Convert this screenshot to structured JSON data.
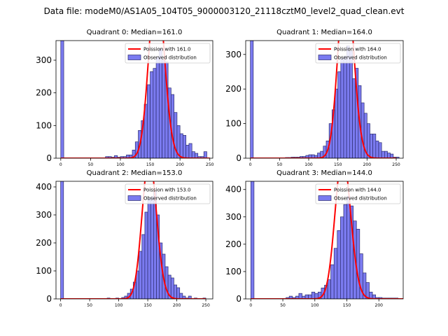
{
  "chart_data": {
    "suptitle": "Data file: modeM0/AS1A05_104T05_9000003120_21118cztM0_level2_quad_clean.evt",
    "bin_width": 5,
    "panels": [
      {
        "title": "Quadrant 0: Median=161.0",
        "type": "histogram",
        "xlim": [
          -8,
          255
        ],
        "ylim": [
          0,
          360
        ],
        "xticks": [
          0,
          50,
          100,
          150,
          200,
          250
        ],
        "yticks": [
          0,
          100,
          200,
          300
        ],
        "legend": {
          "poisson": "Poission with 161.0",
          "observed": "Observed distribution",
          "position": "upper-right"
        },
        "poisson_mean": 161,
        "counts": [
          [
            0,
            360
          ],
          [
            75,
            5
          ],
          [
            80,
            5
          ],
          [
            85,
            3
          ],
          [
            90,
            8
          ],
          [
            95,
            3
          ],
          [
            100,
            5
          ],
          [
            105,
            5
          ],
          [
            110,
            10
          ],
          [
            115,
            10
          ],
          [
            120,
            25
          ],
          [
            125,
            50
          ],
          [
            130,
            85
          ],
          [
            135,
            115
          ],
          [
            140,
            165
          ],
          [
            145,
            225
          ],
          [
            150,
            265
          ],
          [
            155,
            275
          ],
          [
            160,
            310
          ],
          [
            165,
            335
          ],
          [
            170,
            300
          ],
          [
            175,
            295
          ],
          [
            180,
            215
          ],
          [
            185,
            195
          ],
          [
            190,
            140
          ],
          [
            195,
            100
          ],
          [
            200,
            75
          ],
          [
            205,
            70
          ],
          [
            210,
            40
          ],
          [
            215,
            45
          ],
          [
            220,
            20
          ],
          [
            225,
            15
          ],
          [
            230,
            5
          ],
          [
            235,
            5
          ],
          [
            240,
            20
          ]
        ]
      },
      {
        "title": "Quadrant 1: Median=164.0",
        "type": "histogram",
        "xlim": [
          -8,
          262
        ],
        "ylim": [
          0,
          340
        ],
        "xticks": [
          0,
          50,
          100,
          150,
          200,
          250
        ],
        "yticks": [
          0,
          100,
          200,
          300
        ],
        "legend": {
          "poisson": "Poission with 164.0",
          "observed": "Observed distribution",
          "position": "upper-right"
        },
        "poisson_mean": 164,
        "counts": [
          [
            0,
            340
          ],
          [
            60,
            2
          ],
          [
            65,
            2
          ],
          [
            70,
            3
          ],
          [
            75,
            3
          ],
          [
            80,
            3
          ],
          [
            85,
            5
          ],
          [
            90,
            5
          ],
          [
            95,
            8
          ],
          [
            100,
            10
          ],
          [
            105,
            10
          ],
          [
            110,
            8
          ],
          [
            115,
            15
          ],
          [
            120,
            20
          ],
          [
            125,
            35
          ],
          [
            130,
            50
          ],
          [
            135,
            100
          ],
          [
            140,
            140
          ],
          [
            145,
            200
          ],
          [
            150,
            250
          ],
          [
            155,
            290
          ],
          [
            160,
            295
          ],
          [
            165,
            325
          ],
          [
            170,
            310
          ],
          [
            175,
            230
          ],
          [
            180,
            260
          ],
          [
            185,
            210
          ],
          [
            190,
            160
          ],
          [
            195,
            130
          ],
          [
            200,
            100
          ],
          [
            205,
            70
          ],
          [
            210,
            70
          ],
          [
            215,
            50
          ],
          [
            220,
            45
          ],
          [
            225,
            20
          ],
          [
            230,
            20
          ],
          [
            235,
            15
          ],
          [
            240,
            12
          ],
          [
            245,
            3
          ],
          [
            250,
            3
          ]
        ]
      },
      {
        "title": "Quadrant 2: Median=153.0",
        "type": "histogram",
        "xlim": [
          -8,
          262
        ],
        "ylim": [
          0,
          420
        ],
        "xticks": [
          0,
          50,
          100,
          150,
          200,
          250
        ],
        "yticks": [
          0,
          100,
          200,
          300,
          400
        ],
        "legend": {
          "poisson": "Poission with 153.0",
          "observed": "Observed distribution",
          "position": "upper-right"
        },
        "poisson_mean": 153,
        "counts": [
          [
            0,
            420
          ],
          [
            80,
            3
          ],
          [
            95,
            3
          ],
          [
            105,
            5
          ],
          [
            110,
            10
          ],
          [
            115,
            20
          ],
          [
            120,
            35
          ],
          [
            125,
            60
          ],
          [
            130,
            100
          ],
          [
            135,
            170
          ],
          [
            140,
            230
          ],
          [
            145,
            310
          ],
          [
            150,
            360
          ],
          [
            155,
            365
          ],
          [
            160,
            385
          ],
          [
            165,
            300
          ],
          [
            170,
            200
          ],
          [
            175,
            160
          ],
          [
            180,
            115
          ],
          [
            185,
            85
          ],
          [
            190,
            75
          ],
          [
            195,
            50
          ],
          [
            200,
            40
          ],
          [
            205,
            20
          ],
          [
            210,
            10
          ],
          [
            215,
            3
          ],
          [
            220,
            10
          ],
          [
            230,
            3
          ],
          [
            245,
            3
          ]
        ]
      },
      {
        "title": "Quadrant 3: Median=144.0",
        "type": "histogram",
        "xlim": [
          -8,
          238
        ],
        "ylim": [
          0,
          430
        ],
        "xticks": [
          0,
          50,
          100,
          150,
          200
        ],
        "yticks": [
          0,
          100,
          200,
          300,
          400
        ],
        "legend": {
          "poisson": "Poission with 144.0",
          "observed": "Observed distribution",
          "position": "upper-right"
        },
        "poisson_mean": 144,
        "counts": [
          [
            0,
            430
          ],
          [
            55,
            5
          ],
          [
            60,
            10
          ],
          [
            65,
            5
          ],
          [
            70,
            10
          ],
          [
            75,
            20
          ],
          [
            80,
            10
          ],
          [
            85,
            15
          ],
          [
            90,
            15
          ],
          [
            95,
            25
          ],
          [
            100,
            20
          ],
          [
            105,
            25
          ],
          [
            110,
            40
          ],
          [
            115,
            50
          ],
          [
            120,
            70
          ],
          [
            125,
            125
          ],
          [
            130,
            185
          ],
          [
            135,
            250
          ],
          [
            140,
            300
          ],
          [
            145,
            345
          ],
          [
            150,
            375
          ],
          [
            155,
            340
          ],
          [
            160,
            285
          ],
          [
            165,
            255
          ],
          [
            170,
            165
          ],
          [
            175,
            95
          ],
          [
            180,
            60
          ],
          [
            185,
            25
          ],
          [
            190,
            15
          ],
          [
            195,
            5
          ],
          [
            200,
            5
          ],
          [
            205,
            3
          ],
          [
            210,
            3
          ],
          [
            215,
            3
          ],
          [
            220,
            3
          ],
          [
            225,
            3
          ]
        ]
      }
    ]
  }
}
